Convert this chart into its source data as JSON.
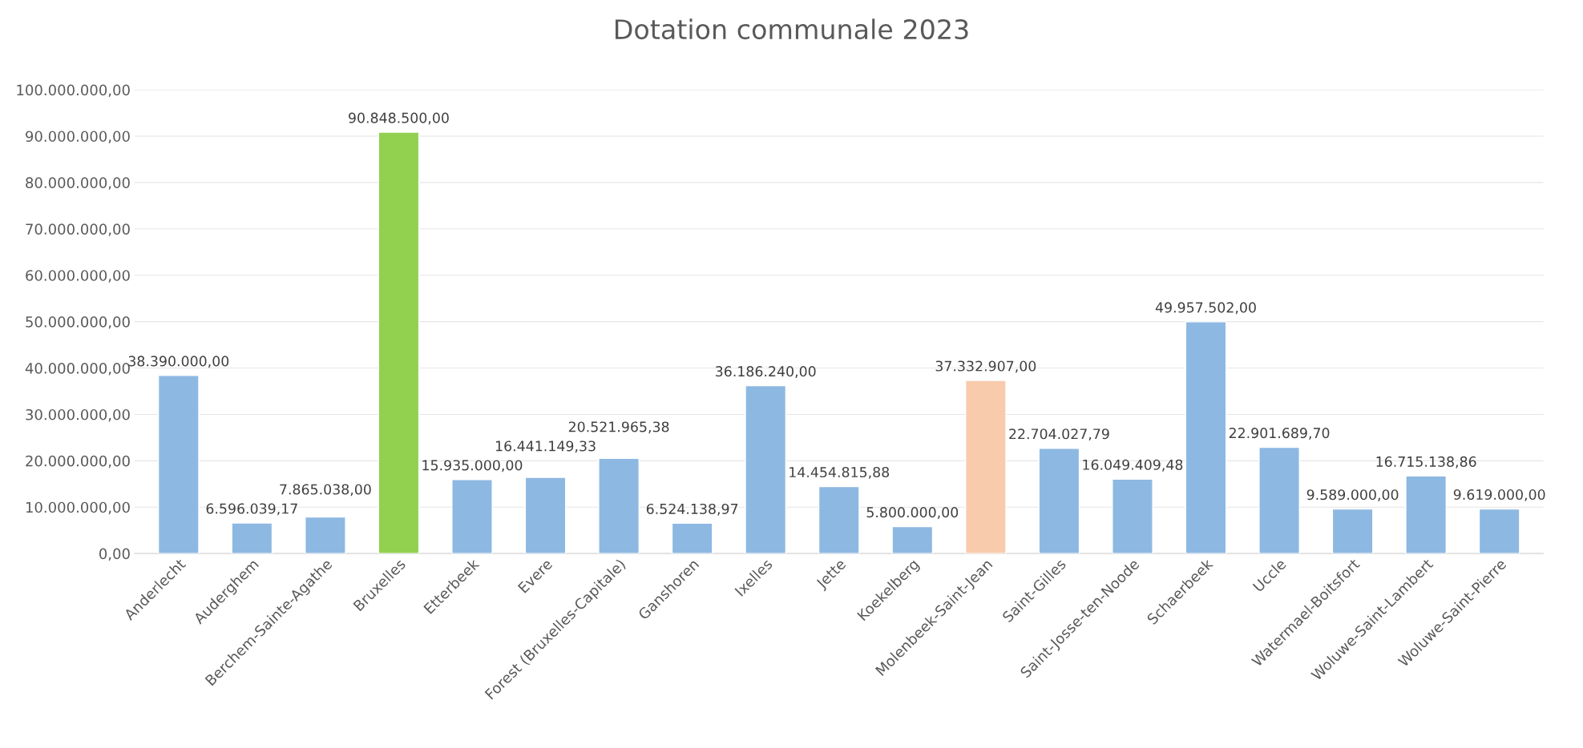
{
  "chart_data": {
    "type": "bar",
    "title": "Dotation communale 2023",
    "categories": [
      "Anderlecht",
      "Auderghem",
      "Berchem-Sainte-Agathe",
      "Bruxelles",
      "Etterbeek",
      "Evere",
      "Forest (Bruxelles-Capitale)",
      "Ganshoren",
      "Ixelles",
      "Jette",
      "Koekelberg",
      "Molenbeek-Saint-Jean",
      "Saint-Gilles",
      "Saint-Josse-ten-Noode",
      "Schaerbeek",
      "Uccle",
      "Watermael-Boitsfort",
      "Woluwe-Saint-Lambert",
      "Woluwe-Saint-Pierre"
    ],
    "values": [
      38390000.0,
      6596039.17,
      7865038.0,
      90848500.0,
      15935000.0,
      16441149.33,
      20521965.38,
      6524138.97,
      36186240.0,
      14454815.88,
      5800000.0,
      37332907.0,
      22704027.79,
      16049409.48,
      49957502.0,
      22901689.7,
      9589000.0,
      16715138.86,
      9619000.0
    ],
    "value_labels": [
      "38.390.000,00",
      "6.596.039,17",
      "7.865.038,00",
      "90.848.500,00",
      "15.935.000,00",
      "16.441.149,33",
      "20.521.965,38",
      "6.524.138,97",
      "36.186.240,00",
      "14.454.815,88",
      "5.800.000,00",
      "37.332.907,00",
      "22.704.027,79",
      "16.049.409,48",
      "49.957.502,00",
      "22.901.689,70",
      "9.589.000,00",
      "16.715.138,86",
      "9.619.000,00"
    ],
    "colors": [
      "#8db8e2",
      "#8db8e2",
      "#8db8e2",
      "#92d050",
      "#8db8e2",
      "#8db8e2",
      "#8db8e2",
      "#8db8e2",
      "#8db8e2",
      "#8db8e2",
      "#8db8e2",
      "#f8cbad",
      "#8db8e2",
      "#8db8e2",
      "#8db8e2",
      "#8db8e2",
      "#8db8e2",
      "#8db8e2",
      "#8db8e2"
    ],
    "ylim": [
      0,
      100000000
    ],
    "yticks": [
      {
        "value": 0,
        "label": "0,00"
      },
      {
        "value": 10000000,
        "label": "10.000.000,00"
      },
      {
        "value": 20000000,
        "label": "20.000.000,00"
      },
      {
        "value": 30000000,
        "label": "30.000.000,00"
      },
      {
        "value": 40000000,
        "label": "40.000.000,00"
      },
      {
        "value": 50000000,
        "label": "50.000.000,00"
      },
      {
        "value": 60000000,
        "label": "60.000.000,00"
      },
      {
        "value": 70000000,
        "label": "70.000.000,00"
      },
      {
        "value": 80000000,
        "label": "80.000.000,00"
      },
      {
        "value": 90000000,
        "label": "90.000.000,00"
      },
      {
        "value": 100000000,
        "label": "100.000.000,00"
      }
    ],
    "grid": "y"
  }
}
